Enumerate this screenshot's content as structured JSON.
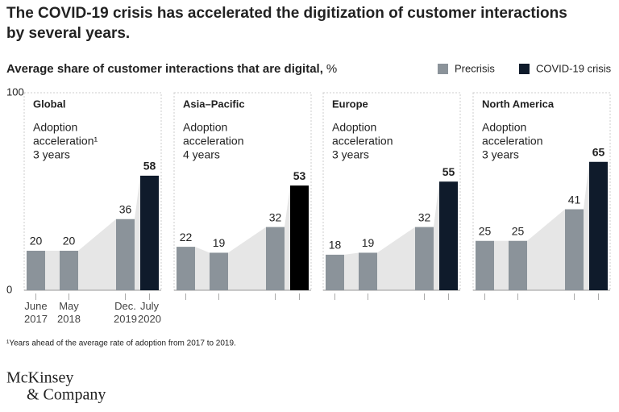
{
  "title_lines": [
    "The COVID-19 crisis has accelerated the digitization of customer interactions",
    "by several years."
  ],
  "subtitle": "Average share of customer interactions that are digital,",
  "subtitle_unit": "%",
  "footnote": "¹Years ahead of the average rate of adoption from 2017 to 2019.",
  "logo_lines": [
    "McKinsey",
    "& Company"
  ],
  "chart_data": [
    {
      "type": "bar",
      "title": "Global",
      "annotation": [
        "Adoption",
        "acceleration¹",
        "3 years"
      ],
      "categories": [
        "June 2017",
        "May 2018",
        "Dec. 2019",
        "July 2020"
      ],
      "series": [
        {
          "name": "Precrisis",
          "color": "#8b939a",
          "values": [
            20,
            20,
            36,
            null
          ]
        },
        {
          "name": "COVID-19 crisis",
          "color": "#0f1b2b",
          "values": [
            null,
            null,
            null,
            58
          ]
        }
      ],
      "ylim": [
        0,
        100
      ],
      "yticks": [
        0,
        100
      ]
    },
    {
      "type": "bar",
      "title": "Asia–Pacific",
      "annotation": [
        "Adoption",
        "acceleration",
        "4 years"
      ],
      "categories": [
        null,
        null,
        null,
        null
      ],
      "series": [
        {
          "name": "Precrisis",
          "color": "#8b939a",
          "values": [
            22,
            19,
            32,
            null
          ]
        },
        {
          "name": "COVID-19 crisis",
          "color": "#000000",
          "values": [
            null,
            null,
            null,
            53
          ]
        }
      ]
    },
    {
      "type": "bar",
      "title": "Europe",
      "annotation": [
        "Adoption",
        "acceleration",
        "3 years"
      ],
      "categories": [
        null,
        null,
        null,
        null
      ],
      "series": [
        {
          "name": "Precrisis",
          "color": "#8b939a",
          "values": [
            18,
            19,
            32,
            null
          ]
        },
        {
          "name": "COVID-19 crisis",
          "color": "#0f1b2b",
          "values": [
            null,
            null,
            null,
            55
          ]
        }
      ]
    },
    {
      "type": "bar",
      "title": "North America",
      "annotation": [
        "Adoption",
        "acceleration",
        "3 years"
      ],
      "categories": [
        null,
        null,
        null,
        null
      ],
      "series": [
        {
          "name": "Precrisis",
          "color": "#8b939a",
          "values": [
            25,
            25,
            41,
            null
          ]
        },
        {
          "name": "COVID-19 crisis",
          "color": "#0f1b2b",
          "values": [
            null,
            null,
            null,
            65
          ]
        }
      ]
    }
  ]
}
